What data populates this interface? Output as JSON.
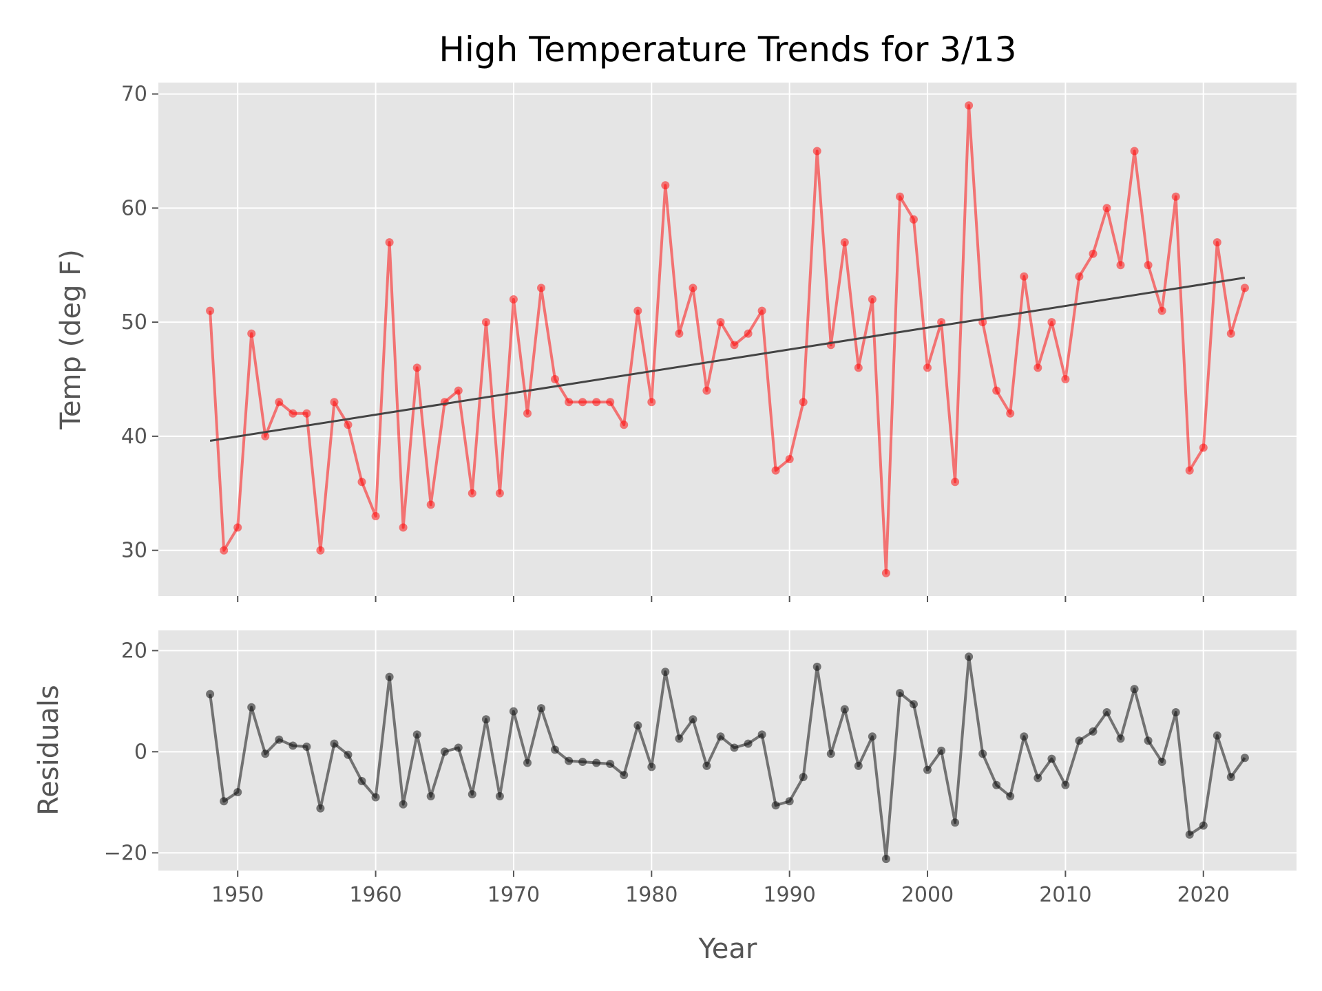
{
  "figure": {
    "title": "High Temperature Trends for 3/13",
    "background": "#ffffff",
    "panel_background": "#e5e5e5",
    "grid_color": "#ffffff"
  },
  "chart_data": [
    {
      "type": "line",
      "ylabel": "Temp (deg F)",
      "xlabel": "",
      "xlim": [
        1944.25,
        2026.75
      ],
      "ylim": [
        26,
        71
      ],
      "x_ticks": [
        "1950",
        "1960",
        "1970",
        "1980",
        "1990",
        "2000",
        "2010",
        "2020"
      ],
      "y_ticks": [
        "30",
        "40",
        "50",
        "60",
        "70"
      ],
      "grid": true,
      "series": [
        {
          "color": "#ff0000",
          "marker": "o",
          "x": [
            1948,
            1949,
            1950,
            1951,
            1952,
            1953,
            1954,
            1955,
            1956,
            1957,
            1958,
            1959,
            1960,
            1961,
            1962,
            1963,
            1964,
            1965,
            1966,
            1967,
            1968,
            1969,
            1970,
            1971,
            1972,
            1973,
            1974,
            1975,
            1976,
            1977,
            1978,
            1979,
            1980,
            1981,
            1982,
            1983,
            1984,
            1985,
            1986,
            1987,
            1988,
            1989,
            1990,
            1991,
            1992,
            1993,
            1994,
            1995,
            1996,
            1997,
            1998,
            1999,
            2000,
            2001,
            2002,
            2003,
            2004,
            2005,
            2006,
            2007,
            2008,
            2009,
            2010,
            2011,
            2012,
            2013,
            2014,
            2015,
            2016,
            2017,
            2018,
            2019,
            2020,
            2021,
            2022,
            2023
          ],
          "values": [
            51,
            30,
            32,
            49,
            40,
            43,
            42,
            42,
            30,
            43,
            41,
            36,
            33,
            57,
            32,
            46,
            34,
            43,
            44,
            35,
            50,
            35,
            52,
            42,
            53,
            45,
            43,
            43,
            43,
            43,
            41,
            51,
            43,
            62,
            49,
            53,
            44,
            50,
            48,
            49,
            51,
            37,
            38,
            43,
            65,
            48,
            57,
            46,
            52,
            28,
            61,
            59,
            46,
            50,
            36,
            69,
            50,
            44,
            42,
            54,
            46,
            50,
            45,
            54,
            56,
            60,
            55,
            65,
            55,
            51,
            61,
            37,
            39,
            57,
            49,
            53
          ]
        },
        {
          "color": "#444444",
          "marker": "none",
          "x": [
            1948,
            2023
          ],
          "values": [
            39.6,
            53.9
          ]
        }
      ]
    },
    {
      "type": "line",
      "ylabel": "Residuals",
      "xlabel": "Year",
      "xlim": [
        1944.25,
        2026.75
      ],
      "ylim": [
        -23.5,
        24
      ],
      "x_ticks": [
        "1950",
        "1960",
        "1970",
        "1980",
        "1990",
        "2000",
        "2010",
        "2020"
      ],
      "y_ticks": [
        "20",
        "0",
        "−20"
      ],
      "grid": true,
      "series": [
        {
          "color": "#000000",
          "marker": "o",
          "x": [
            1948,
            1949,
            1950,
            1951,
            1952,
            1953,
            1954,
            1955,
            1956,
            1957,
            1958,
            1959,
            1960,
            1961,
            1962,
            1963,
            1964,
            1965,
            1966,
            1967,
            1968,
            1969,
            1970,
            1971,
            1972,
            1973,
            1974,
            1975,
            1976,
            1977,
            1978,
            1979,
            1980,
            1981,
            1982,
            1983,
            1984,
            1985,
            1986,
            1987,
            1988,
            1989,
            1990,
            1991,
            1992,
            1993,
            1994,
            1995,
            1996,
            1997,
            1998,
            1999,
            2000,
            2001,
            2002,
            2003,
            2004,
            2005,
            2006,
            2007,
            2008,
            2009,
            2010,
            2011,
            2012,
            2013,
            2014,
            2015,
            2016,
            2017,
            2018,
            2019,
            2020,
            2021,
            2022,
            2023
          ],
          "values": [
            11.4,
            -9.8,
            -8.0,
            8.8,
            -0.4,
            2.4,
            1.2,
            1.0,
            -11.2,
            1.6,
            -0.6,
            -5.8,
            -9.0,
            14.8,
            -10.4,
            3.4,
            -8.8,
            0.0,
            0.8,
            -8.4,
            6.4,
            -8.8,
            8.0,
            -2.2,
            8.6,
            0.4,
            -1.8,
            -2.0,
            -2.2,
            -2.4,
            -4.6,
            5.2,
            -3.0,
            15.8,
            2.6,
            6.4,
            -2.8,
            3.0,
            0.8,
            1.6,
            3.4,
            -10.6,
            -9.8,
            -5.0,
            16.8,
            -0.4,
            8.4,
            -2.8,
            3.0,
            -21.2,
            11.6,
            9.4,
            -3.6,
            0.2,
            -14.0,
            18.8,
            -0.4,
            -6.6,
            -8.8,
            3.0,
            -5.2,
            -1.4,
            -6.6,
            2.2,
            4.0,
            7.8,
            2.6,
            12.4,
            2.2,
            -2.0,
            7.8,
            -16.4,
            -14.6,
            3.2,
            -5.0,
            -1.2
          ]
        }
      ]
    }
  ]
}
